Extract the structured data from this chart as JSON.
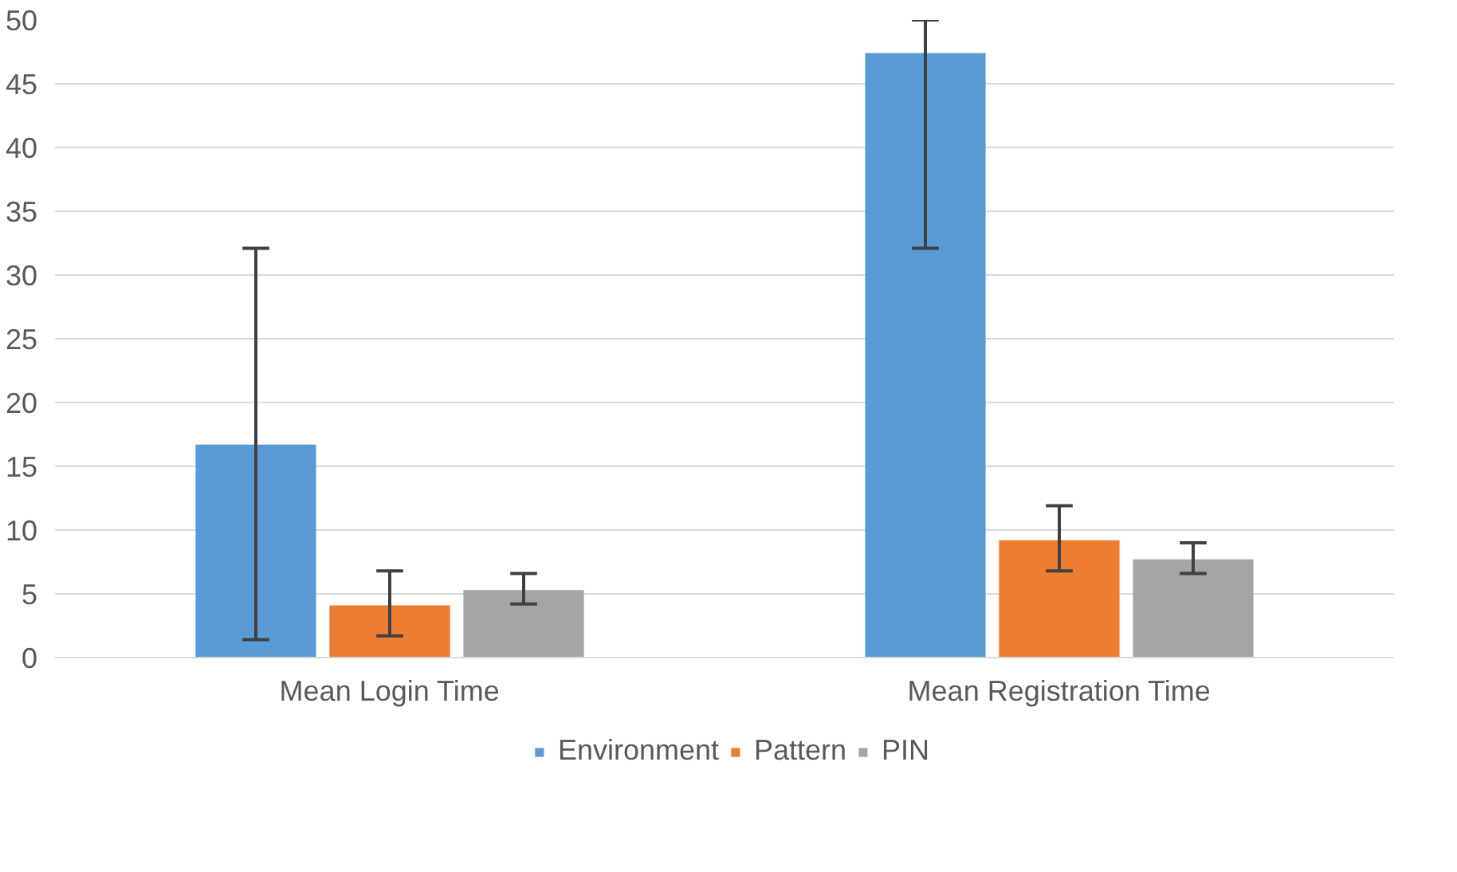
{
  "chart_data": {
    "type": "bar",
    "categories": [
      "Mean Login Time",
      "Mean Registration Time"
    ],
    "series": [
      {
        "name": "Environment",
        "color": "#5b9bd5",
        "values": [
          16.7,
          47.4
        ],
        "errors": [
          [
            1.4,
            32.1
          ],
          [
            32.1,
            50
          ]
        ]
      },
      {
        "name": "Pattern",
        "color": "#ed7d31",
        "values": [
          4.1,
          9.2
        ],
        "errors": [
          [
            1.7,
            6.8
          ],
          [
            6.8,
            11.9
          ]
        ]
      },
      {
        "name": "PIN",
        "color": "#a5a5a5",
        "values": [
          5.3,
          7.7
        ],
        "errors": [
          [
            4.2,
            6.6
          ],
          [
            6.6,
            9.0
          ]
        ]
      }
    ],
    "ylim": [
      0,
      50
    ],
    "yticks": [
      0,
      5,
      10,
      15,
      20,
      25,
      30,
      35,
      40,
      45,
      50
    ],
    "grid": "y",
    "legend": "bottom"
  }
}
